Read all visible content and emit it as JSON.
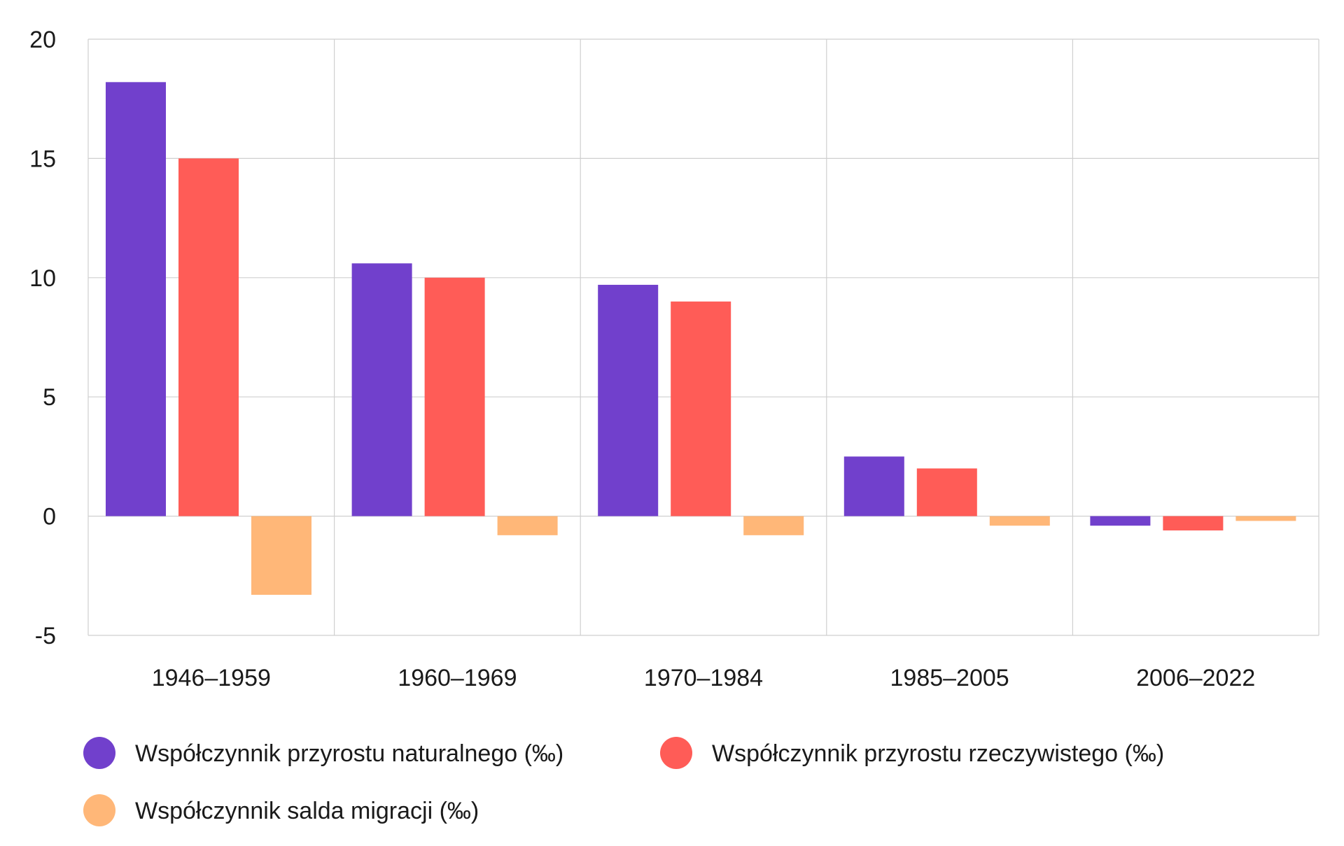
{
  "chart_data": {
    "type": "bar",
    "title": "",
    "xlabel": "",
    "ylabel": "",
    "ylim": [
      -5,
      20
    ],
    "yticks": [
      20,
      15,
      10,
      5,
      0,
      -5
    ],
    "grid": true,
    "legend_position": "bottom",
    "categories": [
      "1946–1959",
      "1960–1969",
      "1970–1984",
      "1985–2005",
      "2006–2022"
    ],
    "series": [
      {
        "name": "Współczynnik przyrostu naturalnego (‰)",
        "color": "#7140CC",
        "values": [
          18.2,
          10.6,
          9.7,
          2.5,
          -0.4
        ]
      },
      {
        "name": "Współczynnik przyrostu rzeczywistego (‰)",
        "color": "#FF5C57",
        "values": [
          15.0,
          10.0,
          9.0,
          2.0,
          -0.6
        ]
      },
      {
        "name": "Współczynnik salda migracji (‰)",
        "color": "#FFB778",
        "values": [
          -3.3,
          -0.8,
          -0.8,
          -0.4,
          -0.2
        ]
      }
    ]
  }
}
